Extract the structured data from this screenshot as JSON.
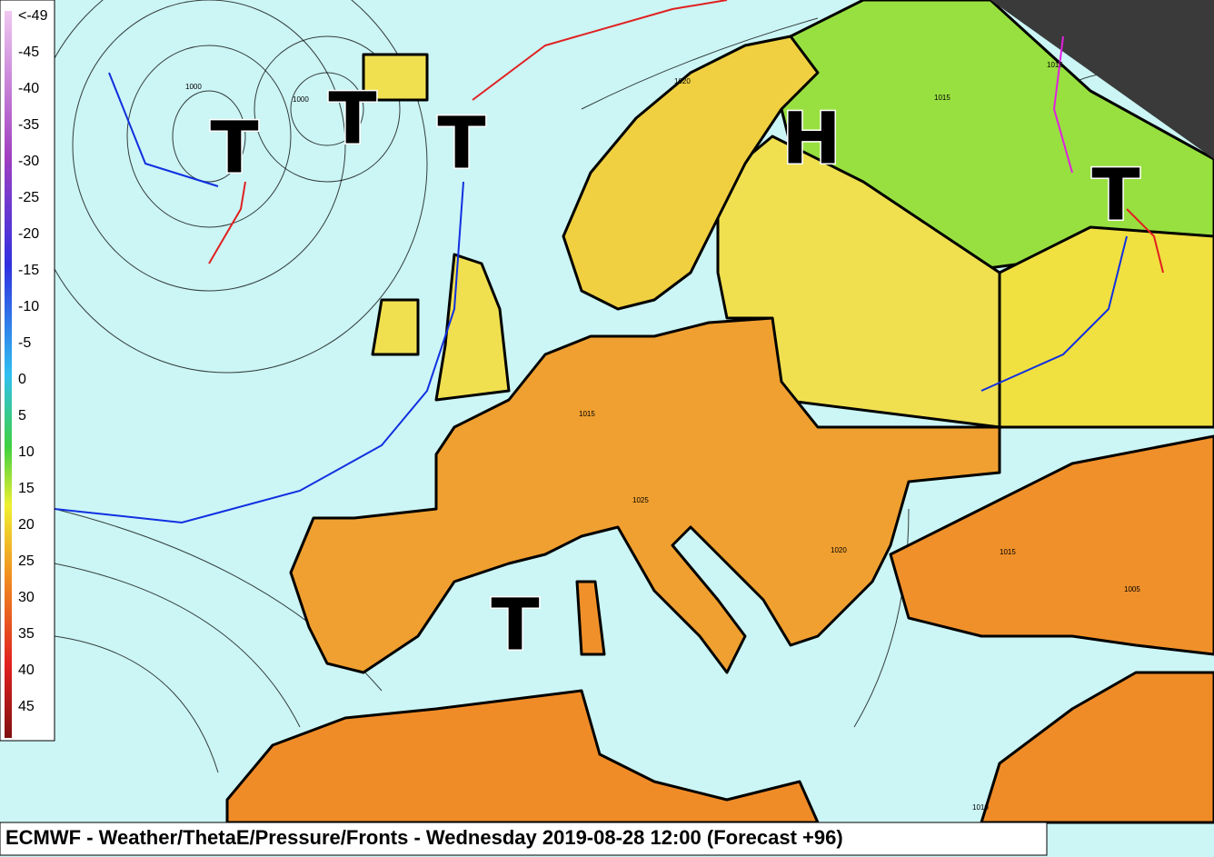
{
  "legend": {
    "labels": [
      "<-49",
      "-45",
      "-40",
      "-35",
      "-30",
      "-25",
      "-20",
      "-15",
      "-10",
      "-5",
      "0",
      "5",
      "10",
      "15",
      "20",
      "25",
      "30",
      "35",
      "40",
      "45"
    ]
  },
  "pressure_centers": [
    {
      "label": "T"
    },
    {
      "label": "T"
    },
    {
      "label": "T"
    },
    {
      "label": "H"
    },
    {
      "label": "T"
    },
    {
      "label": "T"
    }
  ],
  "isobar_labels": [
    "1000",
    "1000",
    "1020",
    "1015",
    "1015",
    "1025",
    "1020",
    "1015",
    "1005",
    "1010",
    "1015"
  ],
  "footer": {
    "title": "ECMWF - Weather/ThetaE/Pressure/Fronts - Wednesday 2019-08-28 12:00 (Forecast +96)"
  }
}
